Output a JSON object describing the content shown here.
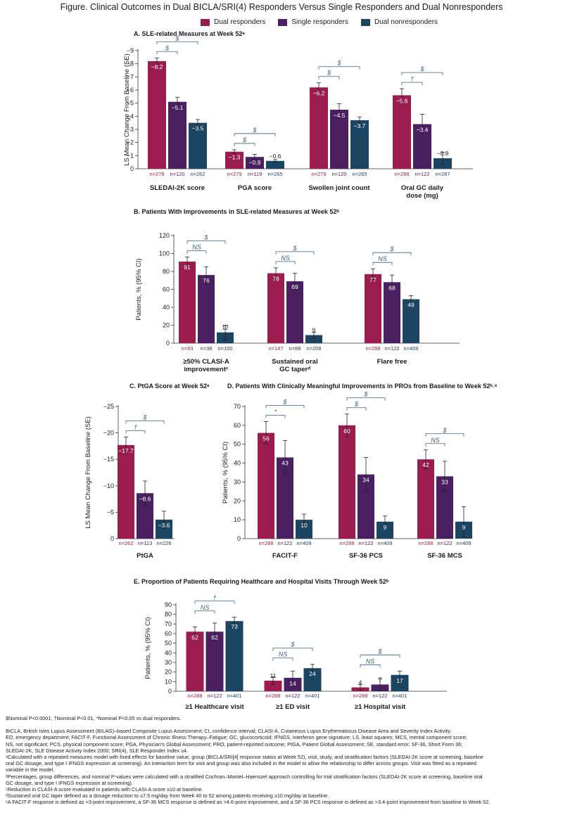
{
  "title": "Figure. Clinical Outcomes in Dual BICLA/SRI(4) Responders Versus Single Responders and Dual Nonresponders",
  "legend": [
    {
      "label": "Dual responders",
      "color": "#9b1d4f"
    },
    {
      "label": "Single responders",
      "color": "#4a2060"
    },
    {
      "label": "Dual nonresponders",
      "color": "#1b4560"
    }
  ],
  "chart_data": [
    {
      "id": "A",
      "type": "bar",
      "title": "A. SLE-related Measures at Week 52ᵃ",
      "ylabel": "LS Mean Change From Baseline (SE)",
      "ylim": [
        0,
        -9
      ],
      "ticks": [
        "0",
        "−1",
        "−2",
        "−3",
        "−4",
        "−5",
        "−6",
        "−7",
        "−8",
        "−9"
      ],
      "categories": [
        "SLEDAI-2K score",
        "PGA score",
        "Swollen joint count",
        "Oral GC daily dose (mg)"
      ],
      "category_lines": [
        [
          "SLEDAI-2K score"
        ],
        [
          "PGA score"
        ],
        [
          "Swollen joint count"
        ],
        [
          "Oral GC daily",
          "dose (mg)"
        ]
      ],
      "series": [
        {
          "name": "Dual responders",
          "values": [
            -8.2,
            -1.3,
            -6.2,
            -5.6
          ],
          "err": [
            0.25,
            0.15,
            0.35,
            0.5
          ],
          "labels": [
            "−8.2",
            "−1.3",
            "−6.2",
            "−5.6"
          ],
          "n": [
            "n=278",
            "n=279",
            "n=279",
            "n=288"
          ]
        },
        {
          "name": "Single responders",
          "values": [
            -5.1,
            -0.9,
            -4.5,
            -3.4
          ],
          "err": [
            0.35,
            0.2,
            0.45,
            0.75
          ],
          "labels": [
            "−5.1",
            "−0.9",
            "−4.5",
            "−3.4"
          ],
          "n": [
            "n=120",
            "n=119",
            "n=120",
            "n=122"
          ]
        },
        {
          "name": "Dual nonresponders",
          "values": [
            -3.5,
            -0.6,
            -3.7,
            -0.8
          ],
          "err": [
            0.25,
            0.1,
            0.25,
            0.45
          ],
          "labels": [
            "−3.5",
            "−0.6",
            "−3.7",
            "−0.8"
          ],
          "n": [
            "n=262",
            "n=265",
            "n=265",
            "n=287"
          ]
        }
      ],
      "significance": [
        [
          {
            "pair": "1-2",
            "mark": "$"
          },
          {
            "pair": "1-3",
            "mark": "$"
          }
        ],
        [
          {
            "pair": "1-2",
            "mark": "$"
          },
          {
            "pair": "1-3",
            "mark": "$"
          }
        ],
        [
          {
            "pair": "1-2",
            "mark": "$"
          },
          {
            "pair": "1-3",
            "mark": "$"
          }
        ],
        [
          {
            "pair": "1-2",
            "mark": "†"
          },
          {
            "pair": "1-3",
            "mark": "$"
          }
        ]
      ]
    },
    {
      "id": "B",
      "type": "bar",
      "title": "B. Patients With Improvements in SLE-related Measures at Week 52ᵇ",
      "ylabel": "Patients, % (95% CI)",
      "ylim": [
        0,
        120
      ],
      "ticks": [
        "0",
        "20",
        "40",
        "60",
        "80",
        "100",
        "120"
      ],
      "categories": [
        "≥50% CLASI-A improvementᶜ",
        "Sustained oral GC taperᵈ",
        "Flare free"
      ],
      "category_lines": [
        [
          "≥50% CLASI-A",
          "improvementᶜ"
        ],
        [
          "Sustained oral",
          "GC taperᵈ"
        ],
        [
          "Flare free"
        ]
      ],
      "series": [
        {
          "name": "Dual responders",
          "values": [
            91,
            78,
            77
          ],
          "err": [
            5,
            6,
            6
          ],
          "labels": [
            "91",
            "78",
            "77"
          ],
          "n": [
            "n=93",
            "n=147",
            "n=288"
          ]
        },
        {
          "name": "Single responders",
          "values": [
            76,
            69,
            68
          ],
          "err": [
            9,
            9,
            8
          ],
          "labels": [
            "76",
            "69",
            "68"
          ],
          "n": [
            "n=38",
            "n=68",
            "n=122"
          ]
        },
        {
          "name": "Dual nonresponders",
          "values": [
            12,
            9,
            49
          ],
          "err": [
            8,
            3,
            4
          ],
          "labels": [
            "12",
            "9",
            "49"
          ],
          "n": [
            "n=100",
            "n=208",
            "n=409"
          ]
        }
      ],
      "significance": [
        [
          {
            "pair": "1-2",
            "mark": "NS"
          },
          {
            "pair": "1-3",
            "mark": "$"
          }
        ],
        [
          {
            "pair": "1-2",
            "mark": "NS"
          },
          {
            "pair": "1-3",
            "mark": "$"
          }
        ],
        [
          {
            "pair": "1-2",
            "mark": "NS"
          },
          {
            "pair": "1-3",
            "mark": "$"
          }
        ]
      ]
    },
    {
      "id": "C",
      "type": "bar",
      "title": "C. PtGA Score at Week 52ᵃ",
      "ylabel": "LS Mean Change From Baseline (SE)",
      "ylim": [
        0,
        -25
      ],
      "ticks": [
        "0",
        "−5",
        "−10",
        "−15",
        "−20",
        "−25"
      ],
      "categories": [
        "PtGA"
      ],
      "category_lines": [
        [
          "PtGA"
        ]
      ],
      "series": [
        {
          "name": "Dual responders",
          "values": [
            -17.7
          ],
          "err": [
            1.5
          ],
          "labels": [
            "−17.7"
          ],
          "n": [
            "n=262"
          ]
        },
        {
          "name": "Single responders",
          "values": [
            -8.6
          ],
          "err": [
            2.3
          ],
          "labels": [
            "−8.6"
          ],
          "n": [
            "n=113"
          ]
        },
        {
          "name": "Dual nonresponders",
          "values": [
            -3.6
          ],
          "err": [
            1.6
          ],
          "labels": [
            "−3.6"
          ],
          "n": [
            "n=226"
          ]
        }
      ],
      "significance": [
        [
          {
            "pair": "1-2",
            "mark": "†"
          },
          {
            "pair": "1-3",
            "mark": "$"
          }
        ]
      ]
    },
    {
      "id": "D",
      "type": "bar",
      "title": "D. Patients With Clinically Meaningful Improvements in PROs from Baseline to Week 52ᵇ˒ᵉ",
      "ylabel": "Patients, % (95% CI)",
      "ylim": [
        0,
        70
      ],
      "ticks": [
        "0",
        "10",
        "20",
        "30",
        "40",
        "50",
        "60",
        "70"
      ],
      "categories": [
        "FACIT-F",
        "SF-36 PCS",
        "SF-36 MCS"
      ],
      "category_lines": [
        [
          "FACIT-F"
        ],
        [
          "SF-36 PCS"
        ],
        [
          "SF-36 MCS"
        ]
      ],
      "series": [
        {
          "name": "Dual responders",
          "values": [
            56,
            60,
            42
          ],
          "err": [
            6,
            6,
            5
          ],
          "labels": [
            "56",
            "60",
            "42"
          ],
          "n": [
            "n=288",
            "n=288",
            "n=288"
          ]
        },
        {
          "name": "Single responders",
          "values": [
            43,
            34,
            33
          ],
          "err": [
            9,
            9,
            8
          ],
          "labels": [
            "43",
            "34",
            "33"
          ],
          "n": [
            "n=122",
            "n=122",
            "n=122"
          ]
        },
        {
          "name": "Dual nonresponders",
          "values": [
            10,
            9,
            9
          ],
          "err": [
            3,
            3,
            8
          ],
          "labels": [
            "10",
            "9",
            "9"
          ],
          "n": [
            "n=409",
            "n=409",
            "n=409"
          ]
        }
      ],
      "significance": [
        [
          {
            "pair": "1-2",
            "mark": "*"
          },
          {
            "pair": "1-3",
            "mark": "$"
          }
        ],
        [
          {
            "pair": "1-2",
            "mark": "$"
          },
          {
            "pair": "1-3",
            "mark": "$"
          }
        ],
        [
          {
            "pair": "1-2",
            "mark": "NS"
          },
          {
            "pair": "1-3",
            "mark": "$"
          }
        ]
      ]
    },
    {
      "id": "E",
      "type": "bar",
      "title": "E. Proportion of Patients Requiring Healthcare and Hospital Visits Through Week 52ᵇ",
      "ylabel": "Patients, % (95% CI)",
      "ylim": [
        0,
        90
      ],
      "ticks": [
        "0",
        "10",
        "20",
        "30",
        "40",
        "50",
        "60",
        "70",
        "80",
        "90"
      ],
      "categories": [
        "≥1 Healthcare visit",
        "≥1 ED visit",
        "≥1 Hospital visit"
      ],
      "category_lines": [
        [
          "≥1 Healthcare visit"
        ],
        [
          "≥1 ED visit"
        ],
        [
          "≥1 Hospital visit"
        ]
      ],
      "series": [
        {
          "name": "Dual responders",
          "values": [
            62,
            11,
            4
          ],
          "err": [
            5,
            4,
            3
          ],
          "labels": [
            "62",
            "11",
            "4"
          ],
          "n": [
            "n=288",
            "n=288",
            "n=288"
          ]
        },
        {
          "name": "Single responders",
          "values": [
            62,
            14,
            7
          ],
          "err": [
            9,
            7,
            6
          ],
          "labels": [
            "62",
            "14",
            "7"
          ],
          "n": [
            "n=122",
            "n=122",
            "n=122"
          ]
        },
        {
          "name": "Dual nonresponders",
          "values": [
            73,
            24,
            17
          ],
          "err": [
            4,
            4,
            4
          ],
          "labels": [
            "73",
            "24",
            "17"
          ],
          "n": [
            "n=401",
            "n=401",
            "n=401"
          ]
        }
      ],
      "significance": [
        [
          {
            "pair": "1-2",
            "mark": "NS"
          },
          {
            "pair": "1-3",
            "mark": "†"
          }
        ],
        [
          {
            "pair": "1-2",
            "mark": "NS"
          },
          {
            "pair": "1-3",
            "mark": "$"
          }
        ],
        [
          {
            "pair": "1-2",
            "mark": "NS"
          },
          {
            "pair": "1-3",
            "mark": "$"
          }
        ]
      ]
    }
  ],
  "footnotes": {
    "symbols": "$Nominal P<0.0001, †Nominal P<0.01, *Nominal P<0.05 vs dual responders.",
    "notes": [
      "BICLA, British Isles Lupus Assessment (BILAG)–based Composite Lupus Assessment; CI, confidence interval; CLASI-A, Cutaneous Lupus Erythematosus Disease Area and Severity Index Activity;",
      "ED, emergency department; FACIT-F, Functional Assessment of Chronic Illness Therapy–Fatigue; GC, glucocorticoid; IFNGS, interferon gene signature; LS, least squares; MCS, mental component score;",
      "NS, not significant; PCS, physical component score; PGA, Physician’s Global Assessment; PRO, patient-reported outcome; PtGA, Patient Global Assessment; SE, standard error; SF-36, Short Form 36;",
      "SLEDAI-2K, SLE Disease Activity Index 2000; SRI(4), SLE Responder Index ≥4.",
      "ᵃCalculated with a repeated measures model with fixed effects for baseline value, group (BICLA/SRI[4] response status at Week 52), visit, study, and stratification factors (SLEDAI-2K score at screening, baseline",
      "oral GC dosage, and type I IFNGS expression at screening). An interaction term for visit and group was also included in the model to allow the relationship to differ across groups. Visit was fitted as a repeated",
      "variable in the model.",
      "ᵇPercentages, group differences, and nominal P-values were calculated with a stratified Cochran–Mantel–Haenszel approach controlling for trial stratification factors (SLEDAI-2K score at screening, baseline oral",
      "GC dosage, and type I IFNGS expression at screening).",
      "ᶜReduction in CLASI-A score evaluated in patients with CLASI-A score ≥10 at baseline.",
      "ᵈSustained oral GC taper defined as a dosage reduction to ≤7.5 mg/day from Week 40 to 52 among patients receiving ≥10 mg/day at baseline.",
      "ᵉA FACIT-F response is defined as >3-point improvement, a SF-36 MCS response is defined as >4.6-point improvement, and a SF-36 PCS response is defined as >3.4-point improvement from baseline to Week 52."
    ]
  }
}
